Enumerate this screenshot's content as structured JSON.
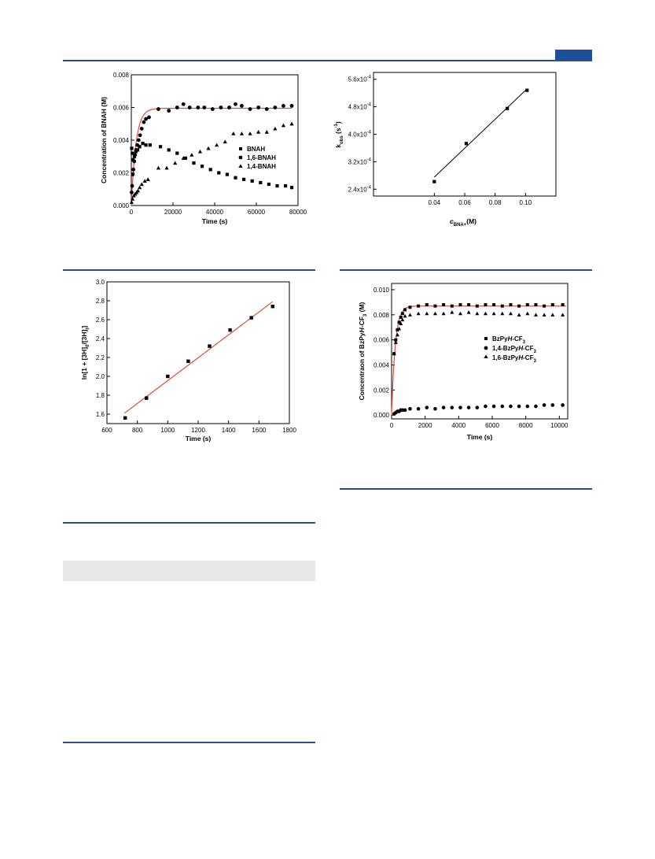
{
  "colors": {
    "rule": "#2c4f8c",
    "tab": "#1f4e9a",
    "fit": "#e8483a",
    "shade": "#e7e7e7"
  },
  "chart_data": [
    {
      "id": "c1",
      "type": "scatter",
      "xlabel": "Time (s)",
      "ylabel": "Concentration of BNAH (M)",
      "xlim": [
        0,
        80000
      ],
      "ylim": [
        0,
        0.008
      ],
      "xticks": [
        0,
        20000,
        40000,
        60000,
        80000
      ],
      "xtick_labels": [
        "0",
        "20000",
        "40000",
        "60000",
        "80000"
      ],
      "yticks": [
        0,
        0.002,
        0.004,
        0.006,
        0.008
      ],
      "ytick_labels": [
        "0.000",
        "0.002",
        "0.004",
        "0.006",
        "0.008"
      ],
      "legend": "center-right",
      "series": [
        {
          "name": "BNAH",
          "marker": "square",
          "points": [
            [
              200,
              0.0035
            ],
            [
              500,
              0.0032
            ],
            [
              900,
              0.0028
            ],
            [
              1500,
              0.003
            ],
            [
              2200,
              0.0033
            ],
            [
              3000,
              0.0034
            ],
            [
              4000,
              0.0036
            ],
            [
              5500,
              0.0038
            ],
            [
              7000,
              0.0037
            ],
            [
              9000,
              0.0037
            ],
            [
              14000,
              0.0036
            ],
            [
              18000,
              0.0034
            ],
            [
              22000,
              0.0032
            ],
            [
              26000,
              0.0029
            ],
            [
              30000,
              0.0026
            ],
            [
              34000,
              0.0024
            ],
            [
              38000,
              0.0022
            ],
            [
              42000,
              0.002
            ],
            [
              46000,
              0.0019
            ],
            [
              50000,
              0.0017
            ],
            [
              54000,
              0.0016
            ],
            [
              58000,
              0.0015
            ],
            [
              62000,
              0.0014
            ],
            [
              66000,
              0.0013
            ],
            [
              70000,
              0.0012
            ],
            [
              74000,
              0.0012
            ],
            [
              77000,
              0.0011
            ]
          ]
        },
        {
          "name": "1,6-BNAH",
          "marker": "circle",
          "points": [
            [
              150,
              0.0008
            ],
            [
              400,
              0.0012
            ],
            [
              700,
              0.0019
            ],
            [
              1000,
              0.0022
            ],
            [
              1400,
              0.0027
            ],
            [
              1800,
              0.0031
            ],
            [
              2300,
              0.0034
            ],
            [
              2900,
              0.0037
            ],
            [
              3500,
              0.004
            ],
            [
              4200,
              0.0043
            ],
            [
              5000,
              0.0047
            ],
            [
              6000,
              0.0051
            ],
            [
              7000,
              0.0053
            ],
            [
              8500,
              0.0054
            ],
            [
              13000,
              0.0059
            ],
            [
              18000,
              0.0058
            ],
            [
              22000,
              0.006
            ],
            [
              25000,
              0.0062
            ],
            [
              28000,
              0.006
            ],
            [
              32000,
              0.006
            ],
            [
              35000,
              0.006
            ],
            [
              39000,
              0.0059
            ],
            [
              43000,
              0.006
            ],
            [
              47000,
              0.006
            ],
            [
              50000,
              0.0062
            ],
            [
              53000,
              0.0061
            ],
            [
              57000,
              0.0059
            ],
            [
              61000,
              0.006
            ],
            [
              65000,
              0.0059
            ],
            [
              69000,
              0.006
            ],
            [
              73000,
              0.0061
            ],
            [
              77000,
              0.0061
            ]
          ]
        },
        {
          "name": "1,4-BNAH",
          "marker": "triangle",
          "points": [
            [
              150,
              0.0002
            ],
            [
              600,
              0.0004
            ],
            [
              1200,
              0.0006
            ],
            [
              1800,
              0.0007
            ],
            [
              2500,
              0.0008
            ],
            [
              3200,
              0.0009
            ],
            [
              4000,
              0.0011
            ],
            [
              5000,
              0.0013
            ],
            [
              6500,
              0.0015
            ],
            [
              8000,
              0.0016
            ],
            [
              13000,
              0.0023
            ],
            [
              17000,
              0.0023
            ],
            [
              21000,
              0.0026
            ],
            [
              25000,
              0.0029
            ],
            [
              29000,
              0.0031
            ],
            [
              33000,
              0.0033
            ],
            [
              37000,
              0.0035
            ],
            [
              41000,
              0.0037
            ],
            [
              45000,
              0.0039
            ],
            [
              49000,
              0.0044
            ],
            [
              53000,
              0.0044
            ],
            [
              57000,
              0.0044
            ],
            [
              61000,
              0.0045
            ],
            [
              65000,
              0.0045
            ],
            [
              69000,
              0.0047
            ],
            [
              73000,
              0.0049
            ],
            [
              77000,
              0.005
            ]
          ]
        }
      ],
      "fit": {
        "type": "first_order_rise",
        "a": 0.00595,
        "k": 0.00045,
        "x_range": [
          0,
          77000
        ]
      }
    },
    {
      "id": "c2",
      "type": "scatter",
      "xlabel": "cBNA+(M)",
      "ylabel": "kobs (s-1)",
      "xlim": [
        0,
        0.12
      ],
      "ylim": [
        0.00022,
        0.00058
      ],
      "xticks": [
        0.04,
        0.06,
        0.08,
        0.1
      ],
      "xtick_labels": [
        "0.04",
        "0.06",
        "0.08",
        "0.10"
      ],
      "yticks": [
        0.00024,
        0.00032,
        0.0004,
        0.00048,
        0.00056
      ],
      "ytick_labels": [
        "2.4x10-4",
        "3.2x10-4",
        "4.0x10-4",
        "4.8x10-4",
        "5.6x10-4"
      ],
      "series": [
        {
          "name": "",
          "marker": "square",
          "points": [
            [
              0.04,
              0.000262
            ],
            [
              0.061,
              0.000373
            ],
            [
              0.088,
              0.000475
            ],
            [
              0.101,
              0.000528
            ]
          ]
        }
      ],
      "fit": {
        "type": "linear",
        "points": [
          [
            0.04,
            0.000275
          ],
          [
            0.101,
            0.000532
          ]
        ]
      }
    },
    {
      "id": "c3",
      "type": "scatter",
      "xlabel": "Time (s)",
      "ylabel": "ln[1 + [3H]0/[3H]t]",
      "xlim": [
        600,
        1800
      ],
      "ylim": [
        1.5,
        3.0
      ],
      "xticks": [
        600,
        800,
        1000,
        1200,
        1400,
        1600,
        1800
      ],
      "xtick_labels": [
        "600",
        "800",
        "1000",
        "1200",
        "1400",
        "1600",
        "1800"
      ],
      "yticks": [
        1.6,
        1.8,
        2.0,
        2.2,
        2.4,
        2.6,
        2.8,
        3.0
      ],
      "ytick_labels": [
        "1.6",
        "1.8",
        "2.0",
        "2.2",
        "2.4",
        "2.6",
        "2.8",
        "3.0"
      ],
      "series": [
        {
          "name": "",
          "marker": "square",
          "points": [
            [
              720,
              1.56
            ],
            [
              860,
              1.77
            ],
            [
              1000,
              2.0
            ],
            [
              1135,
              2.16
            ],
            [
              1275,
              2.32
            ],
            [
              1410,
              2.49
            ],
            [
              1550,
              2.62
            ],
            [
              1690,
              2.74
            ]
          ]
        }
      ],
      "fit": {
        "type": "linear",
        "points": [
          [
            715,
            1.61
          ],
          [
            1690,
            2.79
          ]
        ]
      }
    },
    {
      "id": "c4",
      "type": "scatter",
      "xlabel": "Time (s)",
      "ylabel": "Concentraon of BzPyH-CF3 (M)",
      "xlim": [
        0,
        10500
      ],
      "ylim": [
        -0.0003,
        0.0105
      ],
      "xticks": [
        0,
        2000,
        4000,
        6000,
        8000,
        10000
      ],
      "xtick_labels": [
        "0",
        "2000",
        "4000",
        "6000",
        "8000",
        "10000"
      ],
      "yticks": [
        0,
        0.002,
        0.004,
        0.006,
        0.008,
        0.01
      ],
      "ytick_labels": [
        "0.000",
        "0.002",
        "0.004",
        "0.006",
        "0.008",
        "0.010"
      ],
      "legend": "center-right",
      "series": [
        {
          "name": "BzPyH-CF3",
          "marker": "square",
          "points": [
            [
              150,
              0.0049
            ],
            [
              250,
              0.006
            ],
            [
              350,
              0.0068
            ],
            [
              450,
              0.0074
            ],
            [
              550,
              0.0078
            ],
            [
              650,
              0.0081
            ],
            [
              800,
              0.0084
            ],
            [
              1100,
              0.0086
            ],
            [
              1600,
              0.0087
            ],
            [
              2100,
              0.0088
            ],
            [
              2600,
              0.0087
            ],
            [
              3100,
              0.0088
            ],
            [
              3600,
              0.0087
            ],
            [
              4100,
              0.0088
            ],
            [
              4600,
              0.0088
            ],
            [
              5100,
              0.0087
            ],
            [
              5600,
              0.0088
            ],
            [
              6100,
              0.0088
            ],
            [
              6600,
              0.0087
            ],
            [
              7100,
              0.0088
            ],
            [
              7600,
              0.0087
            ],
            [
              8100,
              0.0088
            ],
            [
              8600,
              0.0088
            ],
            [
              9100,
              0.0087
            ],
            [
              9600,
              0.0088
            ],
            [
              10200,
              0.0088
            ]
          ]
        },
        {
          "name": "1,4-BzPyH-CF3",
          "marker": "circle",
          "points": [
            [
              150,
              0.0001
            ],
            [
              250,
              0.0002
            ],
            [
              350,
              0.0003
            ],
            [
              450,
              0.0003
            ],
            [
              550,
              0.0004
            ],
            [
              650,
              0.0004
            ],
            [
              800,
              0.0004
            ],
            [
              1100,
              0.0005
            ],
            [
              1600,
              0.0005
            ],
            [
              2100,
              0.0006
            ],
            [
              2600,
              0.0005
            ],
            [
              3100,
              0.0006
            ],
            [
              3600,
              0.0006
            ],
            [
              4100,
              0.0006
            ],
            [
              4600,
              0.0006
            ],
            [
              5100,
              0.0006
            ],
            [
              5600,
              0.0007
            ],
            [
              6100,
              0.0007
            ],
            [
              6600,
              0.0007
            ],
            [
              7100,
              0.0007
            ],
            [
              7600,
              0.0007
            ],
            [
              8100,
              0.0007
            ],
            [
              8600,
              0.0007
            ],
            [
              9100,
              0.0008
            ],
            [
              9600,
              0.0008
            ],
            [
              10200,
              0.0008
            ]
          ]
        },
        {
          "name": "1,6-BzPyH-CF3",
          "marker": "triangle",
          "points": [
            [
              150,
              0.0049
            ],
            [
              250,
              0.0058
            ],
            [
              350,
              0.0064
            ],
            [
              450,
              0.0069
            ],
            [
              550,
              0.0073
            ],
            [
              650,
              0.0076
            ],
            [
              800,
              0.0079
            ],
            [
              1100,
              0.008
            ],
            [
              1600,
              0.0081
            ],
            [
              2100,
              0.0081
            ],
            [
              2600,
              0.0081
            ],
            [
              3100,
              0.0081
            ],
            [
              3600,
              0.0082
            ],
            [
              4100,
              0.0081
            ],
            [
              4600,
              0.0082
            ],
            [
              5100,
              0.0081
            ],
            [
              5600,
              0.0081
            ],
            [
              6100,
              0.0081
            ],
            [
              6600,
              0.0081
            ],
            [
              7100,
              0.0081
            ],
            [
              7600,
              0.008
            ],
            [
              8100,
              0.0081
            ],
            [
              8600,
              0.008
            ],
            [
              9100,
              0.008
            ],
            [
              9600,
              0.008
            ],
            [
              10200,
              0.008
            ]
          ]
        }
      ],
      "fit": {
        "type": "first_order_rise",
        "a": 0.0087,
        "k": 0.0046,
        "x_range": [
          0,
          10400
        ]
      }
    }
  ]
}
